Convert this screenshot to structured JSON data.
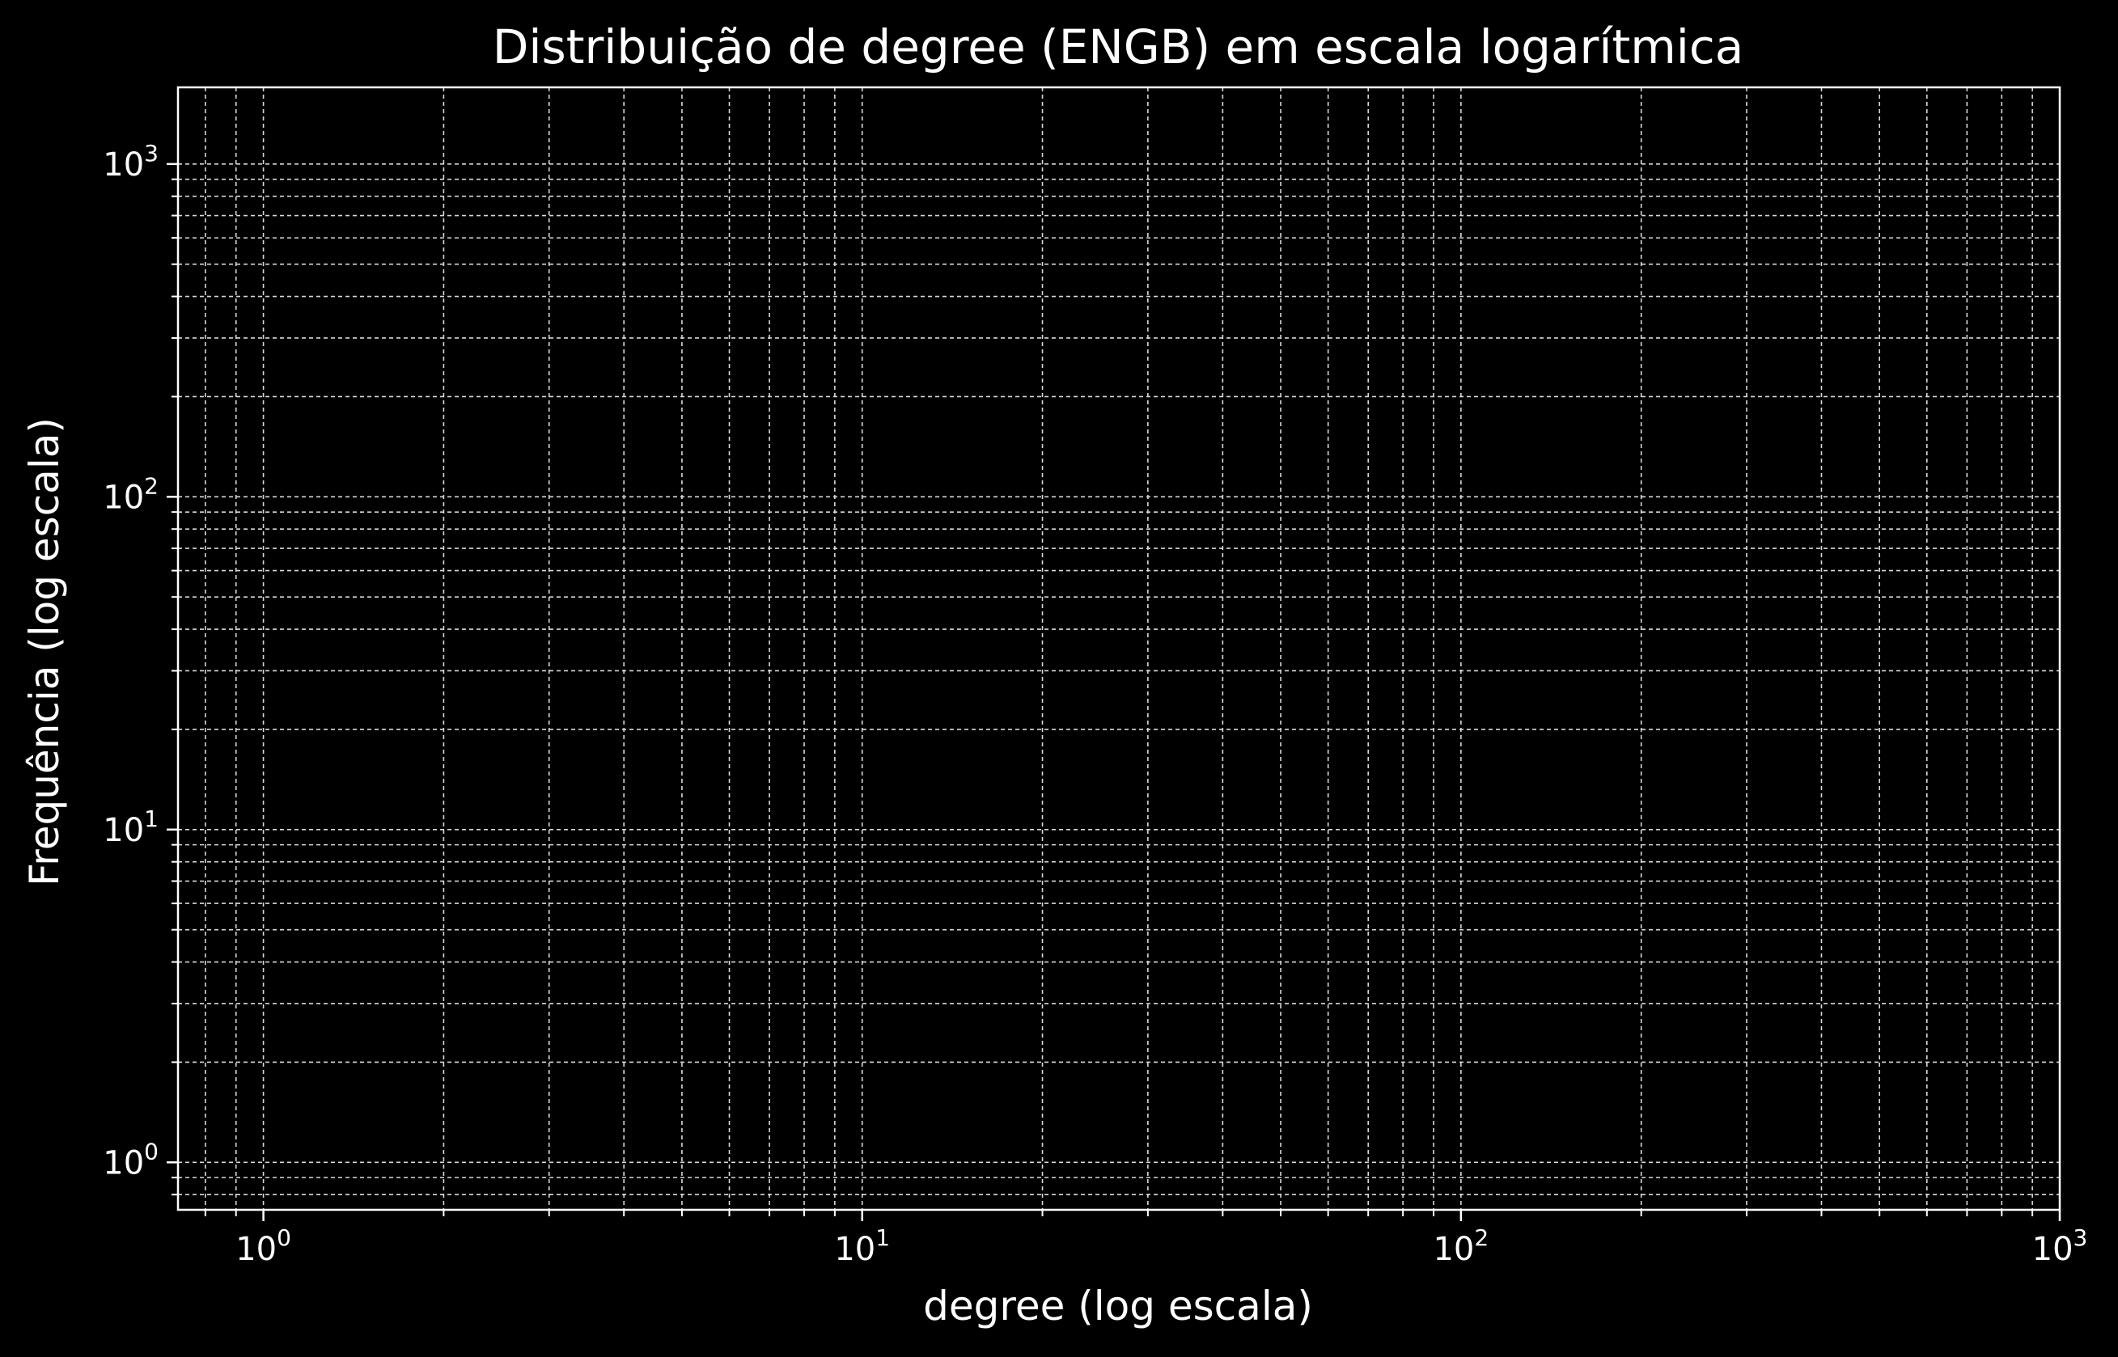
{
  "chart_data": {
    "type": "scatter",
    "title": "Distribuição de degree (ENGB) em escala logarítmica",
    "xlabel": "degree (log escala)",
    "ylabel": "Frequência (log escala)",
    "x_scale": "log",
    "y_scale": "log",
    "xlim": [
      0.72,
      1000
    ],
    "ylim": [
      0.72,
      1700
    ],
    "x_major_ticks": [
      {
        "value": 1,
        "base": "10",
        "exp": "0"
      },
      {
        "value": 10,
        "base": "10",
        "exp": "1"
      },
      {
        "value": 100,
        "base": "10",
        "exp": "2"
      },
      {
        "value": 1000,
        "base": "10",
        "exp": "3"
      }
    ],
    "y_major_ticks": [
      {
        "value": 1,
        "base": "10",
        "exp": "0"
      },
      {
        "value": 10,
        "base": "10",
        "exp": "1"
      },
      {
        "value": 100,
        "base": "10",
        "exp": "2"
      },
      {
        "value": 1000,
        "base": "10",
        "exp": "3"
      }
    ],
    "grid": {
      "major": true,
      "minor": true,
      "style": "dashed"
    },
    "series": [],
    "colors": {
      "background": "#000000",
      "foreground": "#ffffff",
      "grid": "#d9d9d9"
    }
  }
}
